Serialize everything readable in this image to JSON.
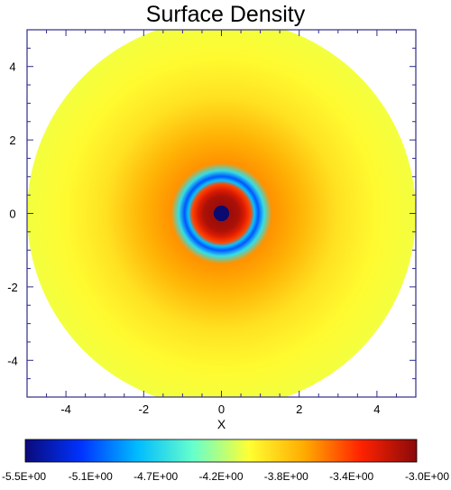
{
  "title": "Surface Density",
  "chart_data": {
    "type": "heatmap",
    "title": "Surface Density",
    "xlabel": "X",
    "ylabel": "",
    "xlim": [
      -5,
      5
    ],
    "ylim": [
      -5,
      5
    ],
    "x_ticks": [
      -4,
      -2,
      0,
      2,
      4
    ],
    "y_ticks": [
      -4,
      -2,
      0,
      2,
      4
    ],
    "x_tick_labels": [
      "-4",
      "-2",
      "0",
      "2",
      "4"
    ],
    "y_tick_labels": [
      "-4",
      "-2",
      "0",
      "2",
      "4"
    ],
    "disk_outer_radius": 5,
    "inner_hole_radius": 0.2,
    "radial_profile": [
      {
        "r": 0.2,
        "value": -3.05
      },
      {
        "r": 0.45,
        "value": -3.1
      },
      {
        "r": 0.6,
        "value": -3.25
      },
      {
        "r": 0.75,
        "value": -3.45
      },
      {
        "r": 0.85,
        "value": -4.75
      },
      {
        "r": 0.95,
        "value": -5.05
      },
      {
        "r": 1.1,
        "value": -4.6
      },
      {
        "r": 1.3,
        "value": -3.65
      },
      {
        "r": 2.0,
        "value": -3.75
      },
      {
        "r": 3.0,
        "value": -3.95
      },
      {
        "r": 4.0,
        "value": -4.05
      },
      {
        "r": 5.0,
        "value": -4.1
      }
    ],
    "colorbar": {
      "min": -5.5,
      "max": -3.0,
      "tick_values": [
        -5.5,
        -5.1,
        -4.7,
        -4.2,
        -3.8,
        -3.4,
        -3.0
      ],
      "tick_labels": [
        "-5.5E+00",
        "-5.1E+00",
        "-4.7E+00",
        "-4.2E+00",
        "-3.8E+00",
        "-3.4E+00",
        "-3.0E+00"
      ],
      "colors": [
        "#0a0a7a",
        "#0033ff",
        "#00bbff",
        "#66ffcc",
        "#ffff33",
        "#ffaa00",
        "#ff2200",
        "#8a0a0a"
      ]
    },
    "colors": {
      "hole": "#0a0a70",
      "axis": "#2d2d8c"
    }
  }
}
